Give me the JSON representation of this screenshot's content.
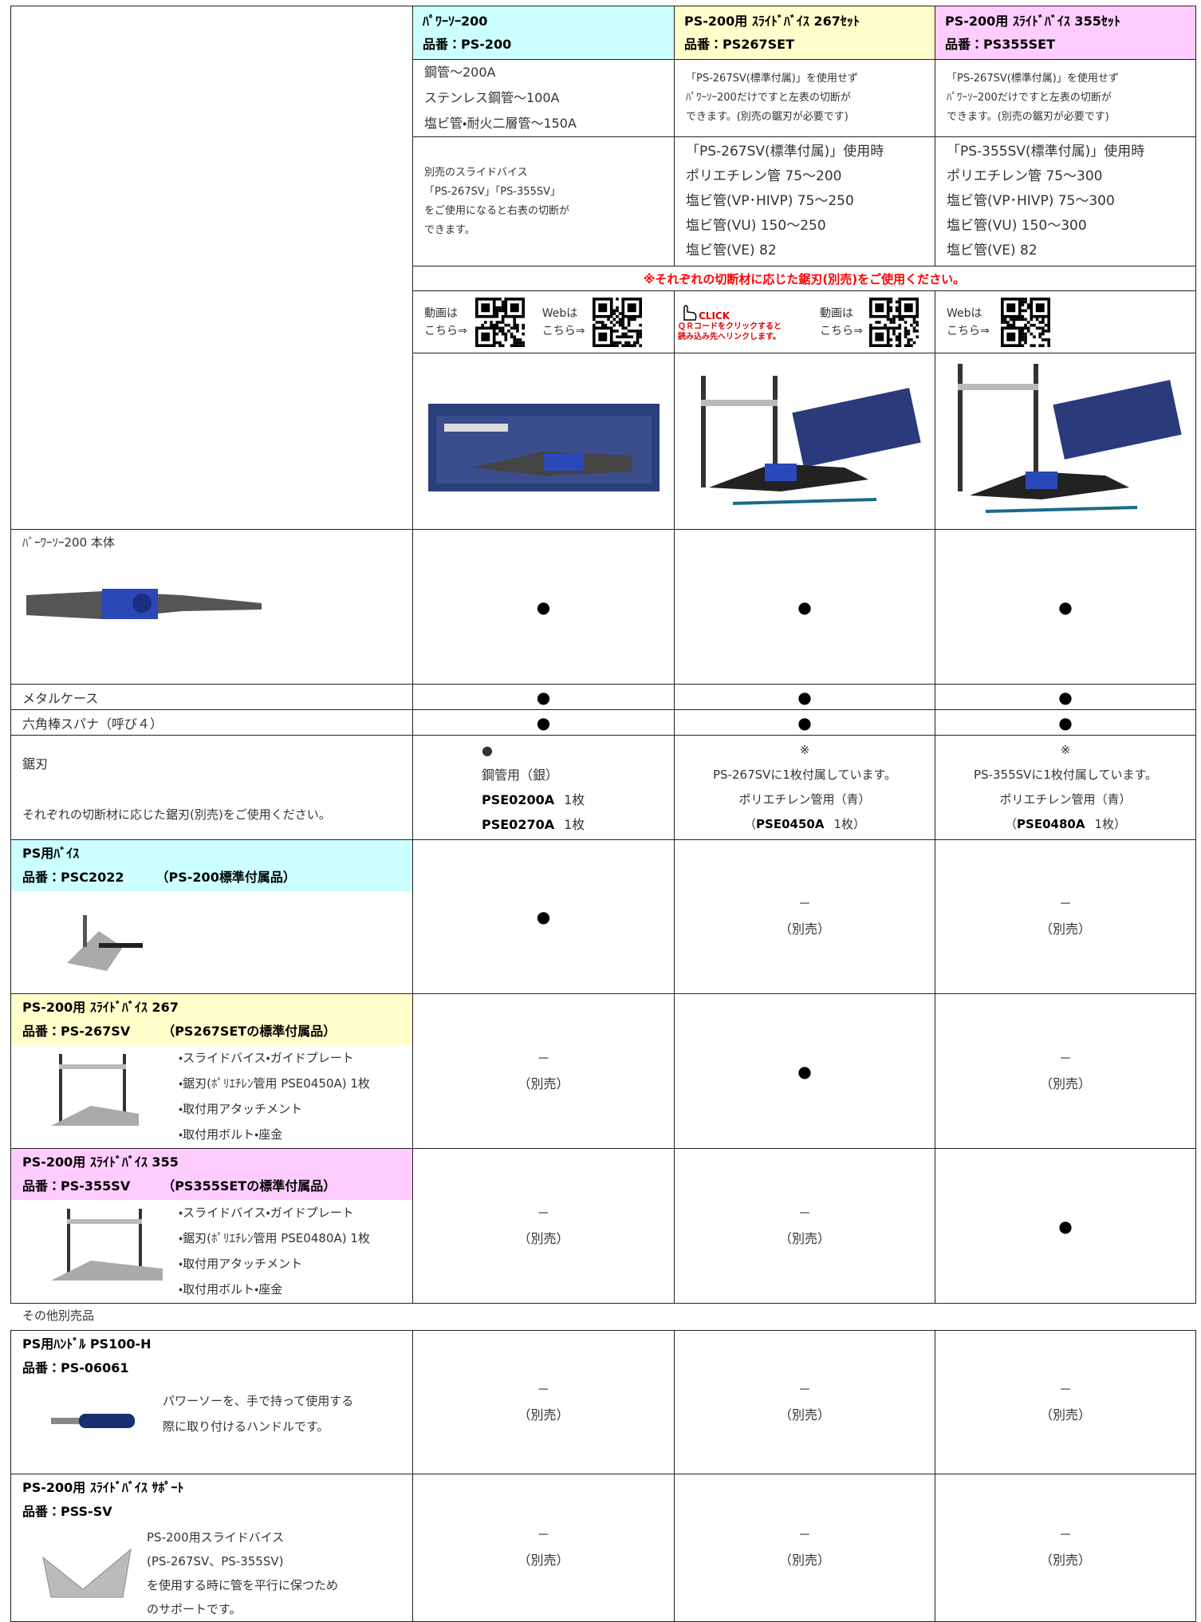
{
  "header": [
    {
      "title": "ﾊﾟﾜｰｿｰ200",
      "code": "品番：PS-200"
    },
    {
      "title": "PS-200用 ｽﾗｲﾄﾞﾊﾞｲｽ 267ｾｯﾄ",
      "code": "品番：PS267SET"
    },
    {
      "title": "PS-200用 ｽﾗｲﾄﾞﾊﾞｲｽ 355ｾｯﾄ",
      "code": "品番：PS355SET"
    }
  ],
  "capacity": [
    [
      "鋼管～200A",
      "ステンレス鋼管～100A",
      "塩ビ管・耐火二層管～150A"
    ],
    [
      "「PS-267SV(標準付属)」を使用せず",
      "ﾊﾟﾜｰｿｰ200だけですと左表の切断が",
      "できます。(別売の鋸刃が必要です)"
    ],
    [
      "「PS-267SV(標準付属)」を使用せず",
      "ﾊﾟﾜｰｿｰ200だけですと左表の切断が",
      "できます。(別売の鋸刃が必要です)"
    ]
  ],
  "slide_capacity": [
    [
      "別売のスライドバイス",
      "「PS-267SV」「PS-355SV」",
      "をご使用になると右表の切断が",
      "できます。"
    ],
    [
      "「PS-267SV(標準付属)」使用時",
      "ポリエチレン管 75～200",
      "塩ビ管(VP･HIVP) 75～250",
      "塩ビ管(VU) 150～250",
      "塩ビ管(VE) 82"
    ],
    [
      "「PS-355SV(標準付属)」使用時",
      "ポリエチレン管 75～300",
      "塩ビ管(VP･HIVP) 75～300",
      "塩ビ管(VU) 150～300",
      "塩ビ管(VE) 82"
    ]
  ],
  "note": "※それぞれの切断材に応じた鋸刃(別売)をご使用ください。",
  "qr": {
    "video": [
      "動画は",
      "こちら⇒"
    ],
    "web": [
      "Webは",
      "こちら⇒"
    ],
    "click": "CLICK",
    "click_note": [
      "ＱＲコードをクリックすると",
      "読み込み先へリンクします。"
    ]
  },
  "items": [
    {
      "name": "ﾊﾞｰﾜｰｿｰ200 本体",
      "cells": [
        [
          "●"
        ],
        [
          "●"
        ],
        [
          "●"
        ]
      ]
    },
    {
      "name": "メタルケース",
      "cells": [
        [
          "●"
        ],
        [
          "●"
        ],
        [
          "●"
        ]
      ]
    },
    {
      "name": "六角棒スパナ（呼び４）",
      "cells": [
        [
          "●"
        ],
        [
          "●"
        ],
        [
          "●"
        ]
      ]
    },
    {
      "name": "鋸刃",
      "note": "それぞれの切断材に応じた鋸刃(別売)をご使用ください。",
      "cells": [
        [
          "●",
          "鋼管用（銀）",
          {
            "code": "PSE0200A",
            "qty": "1枚"
          },
          {
            "code": "PSE0270A",
            "qty": "1枚"
          }
        ],
        [
          "※",
          "PS-267SVに1枚付属しています。",
          "ポリエチレン管用（青）",
          {
            "pre": "（",
            "code": "PSE0450A",
            "qty": "1枚）"
          }
        ],
        [
          "※",
          "PS-355SVに1枚付属しています。",
          "ポリエチレン管用（青）",
          {
            "pre": "（",
            "code": "PSE0480A",
            "qty": "1枚）"
          }
        ]
      ]
    },
    {
      "name": "PS用ﾊﾞｲｽ",
      "code": "品番：PSC2022",
      "note": "（PS-200標準付属品）",
      "cells": [
        [
          "●"
        ],
        [
          "－",
          "（別売）"
        ],
        [
          "－",
          "（別売）"
        ]
      ]
    },
    {
      "name": "PS-200用 ｽﾗｲﾄﾞﾊﾞｲｽ 267",
      "code": "品番：PS-267SV",
      "note": "（PS267SETの標準付属品）",
      "desc": [
        "・スライドバイス・ガイドプレート",
        "・鋸刃(ﾎﾟﾘｴﾁﾚﾝ管用 PSE0450A) 1枚",
        "・取付用アタッチメント",
        "・取付用ボルト・座金"
      ],
      "cells": [
        [
          "－",
          "（別売）"
        ],
        [
          "●"
        ],
        [
          "－",
          "（別売）"
        ]
      ]
    },
    {
      "name": "PS-200用 ｽﾗｲﾄﾞﾊﾞｲｽ 355",
      "code": "品番：PS-355SV",
      "note": "（PS355SETの標準付属品）",
      "desc": [
        "・スライドバイス・ガイドプレート",
        "・鋸刃(ﾎﾟﾘｴﾁﾚﾝ管用 PSE0480A) 1枚",
        "・取付用アタッチメント",
        "・取付用ボルト・座金"
      ],
      "cells": [
        [
          "－",
          "（別売）"
        ],
        [
          "－",
          "（別売）"
        ],
        [
          "●"
        ]
      ]
    }
  ],
  "others_title": "その他別売品",
  "others": [
    {
      "name": "PS用ﾊﾝﾄﾞﾙ PS100-H",
      "code": "品番：PS-06061",
      "desc": [
        "パワーソーを、手で持って使用する",
        "際に取り付けるハンドルです。"
      ],
      "cells": [
        [
          "－",
          "（別売）"
        ],
        [
          "－",
          "（別売）"
        ],
        [
          "－",
          "（別売）"
        ]
      ]
    },
    {
      "name": "PS-200用 ｽﾗｲﾄﾞﾊﾞｲｽ ｻﾎﾟｰﾄ",
      "code": "品番：PSS-SV",
      "desc": [
        "PS-200用スライドバイス",
        "(PS-267SV、PS-355SV)",
        "を使用する時に管を平行に保つため",
        "のサポートです。"
      ],
      "cells": [
        [
          "－",
          "（別売）"
        ],
        [
          "－",
          "（別売）"
        ],
        [
          "－",
          "（別売）"
        ]
      ]
    }
  ]
}
